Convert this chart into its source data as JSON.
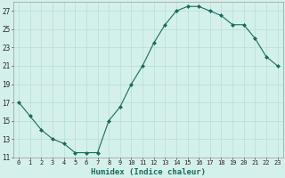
{
  "x": [
    0,
    1,
    2,
    3,
    4,
    5,
    6,
    7,
    8,
    9,
    10,
    11,
    12,
    13,
    14,
    15,
    16,
    17,
    18,
    19,
    20,
    21,
    22,
    23
  ],
  "y": [
    17,
    15.5,
    14,
    13,
    12.5,
    11.5,
    11.5,
    11.5,
    15,
    16.5,
    19,
    21,
    23.5,
    25.5,
    27,
    27.5,
    27.5,
    27,
    26.5,
    25.5,
    25.5,
    24,
    22,
    21
  ],
  "line_color": "#1a6b5a",
  "marker": "D",
  "marker_size": 2.0,
  "bg_color": "#d4f0eb",
  "grid_color": "#b8ddd8",
  "xlabel": "Humidex (Indice chaleur)",
  "ylim": [
    11,
    28
  ],
  "yticks": [
    11,
    13,
    15,
    17,
    19,
    21,
    23,
    25,
    27
  ],
  "xlim": [
    -0.5,
    23.5
  ],
  "xtick_labels": [
    "0",
    "1",
    "2",
    "3",
    "4",
    "5",
    "6",
    "7",
    "8",
    "9",
    "10",
    "11",
    "12",
    "13",
    "14",
    "15",
    "16",
    "17",
    "18",
    "19",
    "20",
    "21",
    "22",
    "23"
  ]
}
